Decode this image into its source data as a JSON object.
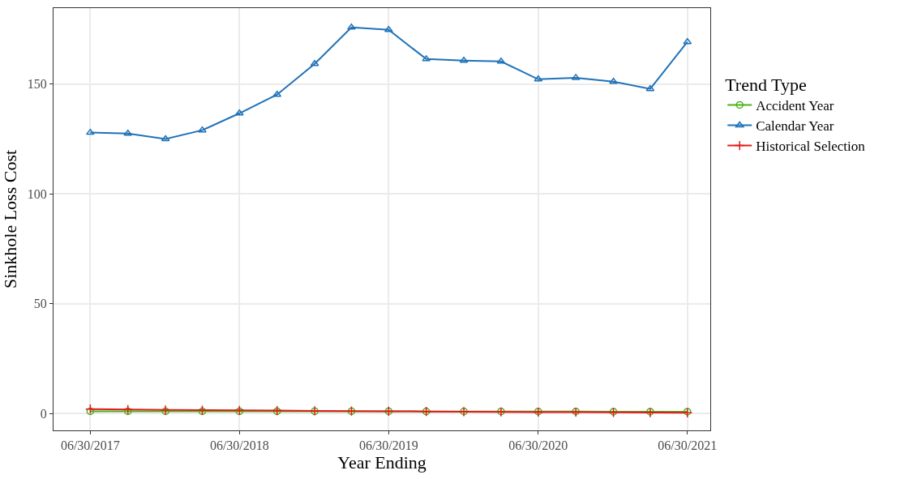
{
  "chart_data": {
    "type": "line",
    "xlabel": "Year Ending",
    "ylabel": "Sinkhole Loss Cost",
    "legend_title": "Trend Type",
    "legend": "right",
    "grid": true,
    "x": [
      "2017-06-30",
      "2017-09-30",
      "2017-12-31",
      "2018-03-31",
      "2018-06-30",
      "2018-09-30",
      "2018-12-31",
      "2019-03-31",
      "2019-06-30",
      "2019-09-30",
      "2019-12-31",
      "2020-03-31",
      "2020-06-30",
      "2020-09-30",
      "2020-12-31",
      "2021-03-31",
      "2021-06-30"
    ],
    "xlim": [
      "2017-04-01",
      "2021-08-25"
    ],
    "xticks": [
      {
        "value": "2017-06-30",
        "label": "06/30/2017"
      },
      {
        "value": "2018-06-30",
        "label": "06/30/2018"
      },
      {
        "value": "2019-06-30",
        "label": "06/30/2019"
      },
      {
        "value": "2020-06-30",
        "label": "06/30/2020"
      },
      {
        "value": "2021-06-30",
        "label": "06/30/2021"
      }
    ],
    "ylim": [
      -7.7,
      184.6
    ],
    "yticks": [
      0,
      50,
      100,
      150
    ],
    "series": [
      {
        "name": "Accident Year",
        "color": "#4daf1f",
        "marker": "circle",
        "values": [
          1.0,
          1.0,
          1.0,
          1.0,
          1.0,
          1.0,
          1.0,
          1.0,
          1.0,
          0.9,
          0.9,
          0.9,
          0.9,
          0.9,
          0.8,
          0.8,
          0.8
        ]
      },
      {
        "name": "Calendar Year",
        "color": "#1f72b8",
        "marker": "triangle",
        "values": [
          127.9,
          127.5,
          125.0,
          129.0,
          136.7,
          145.2,
          159.2,
          175.8,
          174.7,
          161.4,
          160.7,
          160.3,
          152.2,
          152.9,
          151.1,
          147.8,
          169.2
        ]
      },
      {
        "name": "Historical Selection",
        "color": "#e41a1c",
        "marker": "cross",
        "values": [
          2.0,
          1.8,
          1.6,
          1.5,
          1.4,
          1.3,
          1.2,
          1.1,
          1.0,
          0.9,
          0.8,
          0.7,
          0.6,
          0.6,
          0.5,
          0.4,
          0.3
        ]
      }
    ]
  }
}
